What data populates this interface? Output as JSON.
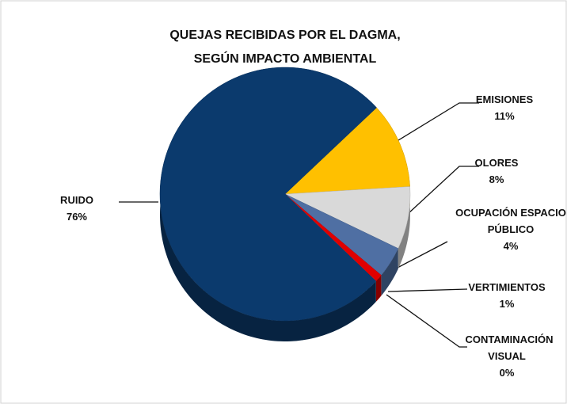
{
  "chart_data": {
    "type": "pie",
    "title": "QUEJAS RECIBIDAS POR EL DAGMA, SEGÚN IMPACTO AMBIENTAL",
    "categories": [
      "EMISIONES",
      "OLORES",
      "OCUPACIÓN ESPACIO PÚBLICO",
      "VERTIMIENTOS",
      "CONTAMINACIÓN VISUAL",
      "RUIDO"
    ],
    "values": [
      11,
      8,
      4,
      1,
      0,
      76
    ],
    "value_labels": [
      "11%",
      "8%",
      "4%",
      "1%",
      "0%",
      "76%"
    ],
    "colors": [
      "#ffc000",
      "#d9d9d9",
      "#4f6fa3",
      "#e00000",
      "#4aa8e0",
      "#0b3a6d"
    ]
  }
}
